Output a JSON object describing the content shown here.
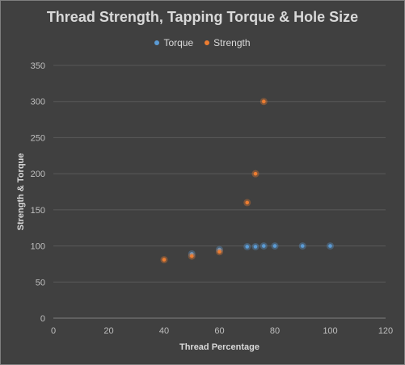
{
  "chart_data": {
    "type": "scatter",
    "title": "Thread Strength, Tapping Torque & Hole Size",
    "xlabel": "Thread Percentage",
    "ylabel": "Strength & Torque",
    "xlim": [
      0,
      120
    ],
    "ylim": [
      0,
      350
    ],
    "x_ticks": [
      0,
      20,
      40,
      60,
      80,
      100,
      120
    ],
    "y_ticks": [
      0,
      50,
      100,
      150,
      200,
      250,
      300,
      350
    ],
    "grid": "horizontal",
    "legend": "top",
    "series": [
      {
        "name": "Torque",
        "color": "#5b9bd5",
        "points": [
          {
            "x": 50,
            "y": 89
          },
          {
            "x": 60,
            "y": 95
          },
          {
            "x": 70,
            "y": 99
          },
          {
            "x": 73,
            "y": 99
          },
          {
            "x": 76,
            "y": 100
          },
          {
            "x": 80,
            "y": 100
          },
          {
            "x": 90,
            "y": 100
          },
          {
            "x": 100,
            "y": 100
          }
        ]
      },
      {
        "name": "Strength",
        "color": "#ed7d31",
        "points": [
          {
            "x": 40,
            "y": 81
          },
          {
            "x": 50,
            "y": 86
          },
          {
            "x": 60,
            "y": 92
          },
          {
            "x": 70,
            "y": 160
          },
          {
            "x": 73,
            "y": 200
          },
          {
            "x": 76,
            "y": 300
          }
        ]
      }
    ]
  },
  "colors": {
    "background": "#404040",
    "gridline": "#595959",
    "text": "#d9d9d9"
  }
}
